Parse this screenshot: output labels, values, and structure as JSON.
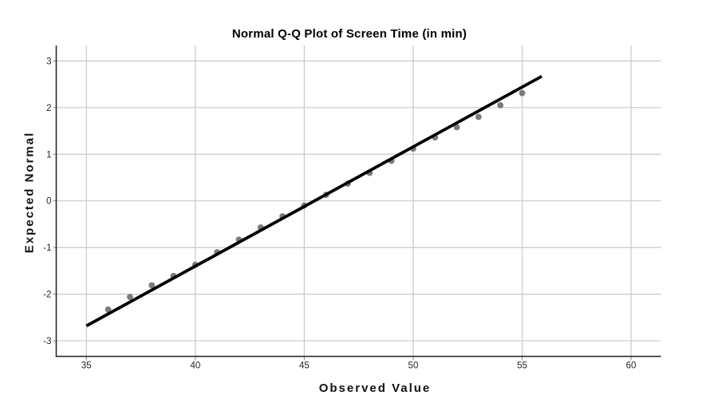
{
  "chart_data": {
    "type": "scatter",
    "subtype": "normal-qq-plot",
    "title": "Normal Q-Q Plot of Screen Time (in min)",
    "xlabel": "Observed Value",
    "ylabel": "Expected Normal",
    "x_ticks": [
      35,
      40,
      45,
      50,
      55,
      60
    ],
    "y_ticks": [
      -3,
      -2,
      -1,
      0,
      1,
      2,
      3
    ],
    "xlim": [
      33.6,
      61.4
    ],
    "ylim": [
      -3.33,
      3.33
    ],
    "grid": "on",
    "legend": "none",
    "series": [
      {
        "name": "observed-quantiles",
        "type": "points",
        "points": [
          [
            36,
            -2.33
          ],
          [
            37,
            -2.06
          ],
          [
            38,
            -1.81
          ],
          [
            39,
            -1.61
          ],
          [
            40,
            -1.37
          ],
          [
            41,
            -1.1
          ],
          [
            42,
            -0.83
          ],
          [
            43,
            -0.57
          ],
          [
            44,
            -0.33
          ],
          [
            45,
            -0.1
          ],
          [
            46,
            0.13
          ],
          [
            47,
            0.37
          ],
          [
            48,
            0.6
          ],
          [
            49,
            0.86
          ],
          [
            50,
            1.12
          ],
          [
            51,
            1.36
          ],
          [
            52,
            1.58
          ],
          [
            53,
            1.8
          ],
          [
            54,
            2.05
          ],
          [
            55,
            2.31
          ]
        ]
      },
      {
        "name": "normal-reference-line",
        "type": "line",
        "points": [
          [
            35.0,
            -2.68
          ],
          [
            55.9,
            2.67
          ]
        ]
      }
    ],
    "colors": {
      "point": "#7b7b7b",
      "reference_line": "#000000",
      "gridline": "#c9c9c9",
      "tick_mark": "#9a9a9a",
      "axis_frame": "#2b2b2b",
      "tick_text": "#262626"
    }
  }
}
